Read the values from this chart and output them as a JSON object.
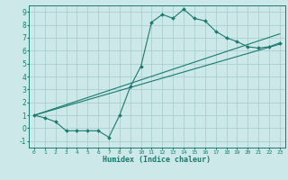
{
  "xlabel": "Humidex (Indice chaleur)",
  "ylabel": "",
  "background_color": "#cce8e8",
  "grid_color": "#aacece",
  "line_color": "#1a7a6e",
  "xlim": [
    -0.5,
    23.5
  ],
  "ylim": [
    -1.5,
    9.5
  ],
  "xticks": [
    0,
    1,
    2,
    3,
    4,
    5,
    6,
    7,
    8,
    9,
    10,
    11,
    12,
    13,
    14,
    15,
    16,
    17,
    18,
    19,
    20,
    21,
    22,
    23
  ],
  "yticks": [
    -1,
    0,
    1,
    2,
    3,
    4,
    5,
    6,
    7,
    8,
    9
  ],
  "curve1_x": [
    0,
    1,
    2,
    3,
    4,
    5,
    6,
    7,
    8,
    9,
    10,
    11,
    12,
    13,
    14,
    15,
    16,
    17,
    18,
    19,
    20,
    21,
    22,
    23
  ],
  "curve1_y": [
    1.0,
    0.8,
    0.5,
    -0.2,
    -0.2,
    -0.2,
    -0.2,
    -0.7,
    1.0,
    3.2,
    4.8,
    8.2,
    8.8,
    8.5,
    9.2,
    8.5,
    8.3,
    7.5,
    7.0,
    6.7,
    6.3,
    6.2,
    6.3,
    6.6
  ],
  "line1_x": [
    0,
    23
  ],
  "line1_y": [
    1.0,
    6.5
  ],
  "line2_x": [
    0,
    23
  ],
  "line2_y": [
    1.0,
    7.3
  ]
}
